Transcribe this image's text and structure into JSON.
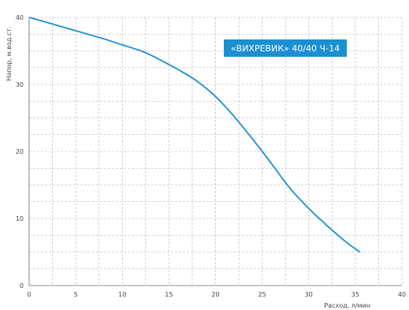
{
  "chart_data": {
    "type": "line",
    "title": "«ВИХРЕВИК» 40/40 Ч-14",
    "xlabel": "Расход, л/мин",
    "ylabel": "Напор, м.вод.ст.",
    "xlim": [
      0,
      40
    ],
    "ylim": [
      0,
      40
    ],
    "x_ticks": [
      "0",
      "5",
      "10",
      "15",
      "20",
      "25",
      "30",
      "35",
      "40"
    ],
    "y_ticks": [
      "0",
      "10",
      "20",
      "30",
      "40"
    ],
    "grid": true,
    "series": [
      {
        "x": [
          0,
          2,
          4,
          6,
          8,
          10,
          12,
          13,
          14,
          16,
          18,
          20,
          22,
          24,
          26,
          28,
          30,
          32,
          34,
          35.5
        ],
        "y": [
          40,
          39.2,
          38.4,
          37.6,
          36.8,
          35.9,
          35.0,
          34.4,
          33.7,
          32.2,
          30.5,
          28.2,
          25.2,
          21.8,
          18.2,
          14.5,
          11.5,
          8.9,
          6.5,
          5.0
        ]
      }
    ],
    "colors": {
      "line": "#1a8fd1",
      "title_bg": "#1a8fd1",
      "grid": "#b0b0b0",
      "axis": "#666666"
    }
  }
}
